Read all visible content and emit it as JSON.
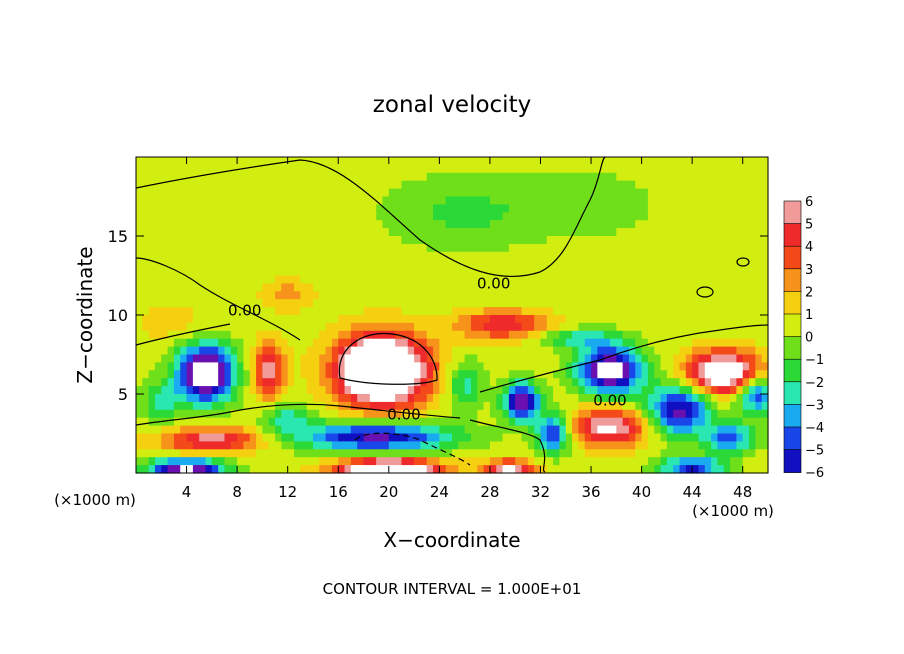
{
  "chart_data": {
    "type": "heatmap",
    "title": "zonal velocity",
    "xlabel": "X−coordinate",
    "ylabel": "Z−coordinate",
    "x_unit": "(×1000 m)",
    "y_unit": "(×1000 m)",
    "xlim": [
      0,
      50
    ],
    "ylim": [
      0,
      20
    ],
    "x_ticks": [
      4,
      8,
      12,
      16,
      20,
      24,
      28,
      32,
      36,
      40,
      44,
      48
    ],
    "y_ticks": [
      5,
      10,
      15
    ],
    "contour_interval_label": "CONTOUR INTERVAL = 1.000E+01",
    "contour_labels": [
      {
        "text": "0.00",
        "x": 28.3,
        "y": 12.0
      },
      {
        "text": "0.00",
        "x": 8.6,
        "y": 10.3
      },
      {
        "text": "0.00",
        "x": 21.2,
        "y": 3.7
      },
      {
        "text": "0.00",
        "x": 37.5,
        "y": 4.6
      }
    ],
    "colorbar": {
      "levels": [
        "6",
        "5",
        "4",
        "3",
        "2",
        "1",
        "0",
        "−1",
        "−2",
        "−3",
        "−4",
        "−5",
        "−6"
      ],
      "colors": [
        "#f09a9a",
        "#ee2a2a",
        "#f44a1a",
        "#f7931a",
        "#f5d010",
        "#d2ee10",
        "#6fdf1a",
        "#2ad838",
        "#2ae6b0",
        "#1aaaf0",
        "#1846e8",
        "#1010c0",
        "#6a10b0"
      ]
    },
    "field": {
      "background": 1.0,
      "blobs": [
        {
          "x": 26,
          "y": 16.5,
          "sx": 6,
          "sy": 2.2,
          "a": -1.8
        },
        {
          "x": 36,
          "y": 17,
          "sx": 5,
          "sy": 2,
          "a": -1.2
        },
        {
          "x": 12,
          "y": 11.3,
          "sx": 2,
          "sy": 0.9,
          "a": 2.2
        },
        {
          "x": 29,
          "y": 9.4,
          "sx": 3.5,
          "sy": 0.9,
          "a": 4.5
        },
        {
          "x": 19.5,
          "y": 6.5,
          "sx": 3.6,
          "sy": 2.2,
          "a": 11
        },
        {
          "x": 18,
          "y": 7,
          "sx": 1.2,
          "sy": 1.2,
          "a": 2
        },
        {
          "x": 5.5,
          "y": 6.3,
          "sx": 2.2,
          "sy": 1.8,
          "a": -10
        },
        {
          "x": 10.5,
          "y": 6.5,
          "sx": 1.2,
          "sy": 1.8,
          "a": 5
        },
        {
          "x": 2,
          "y": 4.5,
          "sx": 1.5,
          "sy": 1.2,
          "a": -3
        },
        {
          "x": 37.5,
          "y": 6.5,
          "sx": 2.5,
          "sy": 1.5,
          "a": -9
        },
        {
          "x": 46.5,
          "y": 6.3,
          "sx": 3,
          "sy": 1.4,
          "a": 8
        },
        {
          "x": 43,
          "y": 4,
          "sx": 2.5,
          "sy": 1.6,
          "a": -7
        },
        {
          "x": 49,
          "y": 5,
          "sx": 1.5,
          "sy": 1.2,
          "a": -6
        },
        {
          "x": 37.5,
          "y": 2.9,
          "sx": 3,
          "sy": 1.2,
          "a": 6
        },
        {
          "x": 30.5,
          "y": 4.5,
          "sx": 1.4,
          "sy": 1.2,
          "a": -8
        },
        {
          "x": 33,
          "y": 2.5,
          "sx": 1.3,
          "sy": 1.2,
          "a": -6
        },
        {
          "x": 19,
          "y": 2.3,
          "sx": 6,
          "sy": 0.9,
          "a": -7
        },
        {
          "x": 6,
          "y": 2.1,
          "sx": 4,
          "sy": 0.8,
          "a": 5
        },
        {
          "x": 12,
          "y": 3.4,
          "sx": 2,
          "sy": 1,
          "a": -3
        },
        {
          "x": 4,
          "y": 0.3,
          "sx": 3,
          "sy": 0.6,
          "a": -8
        },
        {
          "x": 20,
          "y": 0.3,
          "sx": 4,
          "sy": 0.6,
          "a": 9
        },
        {
          "x": 29.5,
          "y": 0.3,
          "sx": 2,
          "sy": 0.5,
          "a": 6
        },
        {
          "x": 44,
          "y": 0.4,
          "sx": 2.5,
          "sy": 0.6,
          "a": -6
        },
        {
          "x": 26,
          "y": 5.6,
          "sx": 1.5,
          "sy": 1.5,
          "a": -3
        },
        {
          "x": 47,
          "y": 2.2,
          "sx": 2,
          "sy": 0.9,
          "a": -5
        },
        {
          "x": 35,
          "y": 8.5,
          "sx": 3,
          "sy": 0.6,
          "a": -3
        },
        {
          "x": 3,
          "y": 9.5,
          "sx": 3,
          "sy": 1.5,
          "a": 1
        }
      ]
    }
  }
}
